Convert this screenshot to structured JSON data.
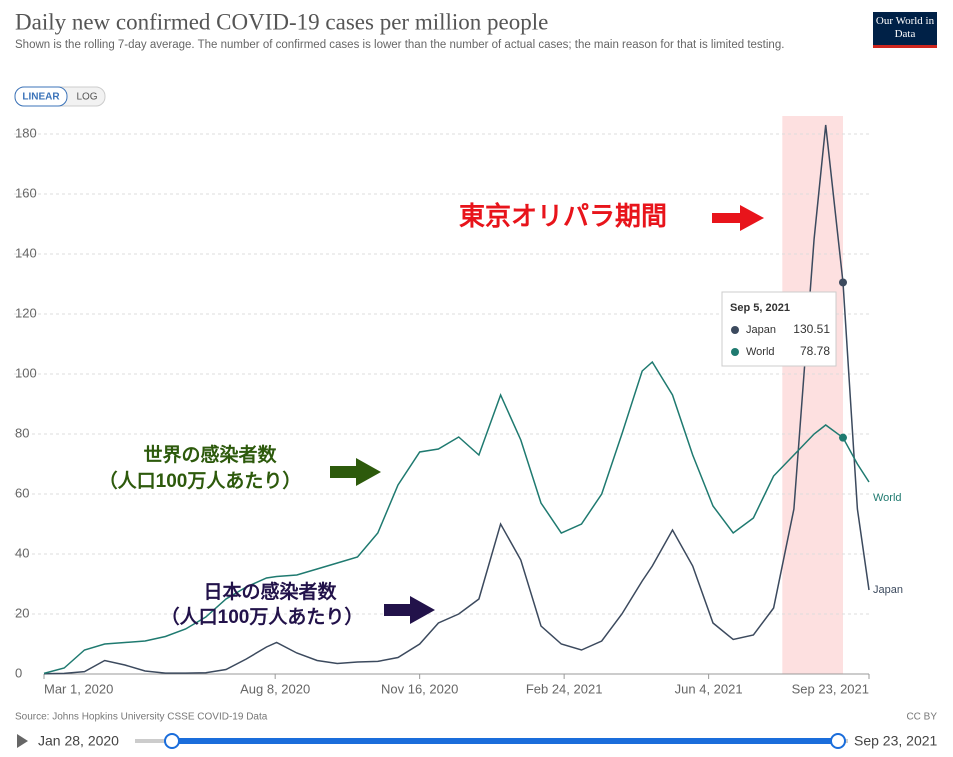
{
  "header": {
    "logo": "Our World in Data"
  },
  "controls": {
    "linear": "LINEAR",
    "log": "LOG"
  },
  "chart_data": {
    "type": "line",
    "title": "Daily new confirmed COVID-19 cases per million people",
    "subtitle": "Shown is the rolling 7-day average. The number of confirmed cases is lower than the number of actual cases; the main reason for that is limited testing.",
    "x": [
      "2020-03-01",
      "2020-03-15",
      "2020-03-29",
      "2020-04-12",
      "2020-04-26",
      "2020-05-10",
      "2020-05-24",
      "2020-06-07",
      "2020-06-21",
      "2020-07-05",
      "2020-07-19",
      "2020-08-02",
      "2020-08-09",
      "2020-08-23",
      "2020-09-06",
      "2020-09-20",
      "2020-10-04",
      "2020-10-18",
      "2020-11-01",
      "2020-11-16",
      "2020-11-29",
      "2020-12-13",
      "2020-12-27",
      "2021-01-11",
      "2021-01-25",
      "2021-02-08",
      "2021-02-22",
      "2021-03-08",
      "2021-03-22",
      "2021-04-05",
      "2021-04-19",
      "2021-04-26",
      "2021-05-10",
      "2021-05-24",
      "2021-06-07",
      "2021-06-21",
      "2021-07-05",
      "2021-07-19",
      "2021-08-02",
      "2021-08-16",
      "2021-08-24",
      "2021-09-05",
      "2021-09-15",
      "2021-09-23"
    ],
    "series": [
      {
        "name": "Japan",
        "color": "#3c4a5e",
        "values": [
          0.1,
          0.2,
          0.8,
          4.5,
          3,
          1,
          0.3,
          0.3,
          0.4,
          1.5,
          5,
          9,
          10.5,
          7,
          4.5,
          3.5,
          4,
          4.2,
          5.5,
          10,
          17,
          20,
          25,
          50,
          38,
          16,
          10,
          8,
          11,
          20,
          31,
          36,
          48,
          36,
          17,
          11.5,
          13,
          22,
          55,
          145,
          183,
          130.51,
          55,
          28
        ]
      },
      {
        "name": "World",
        "color": "#1f7a70",
        "values": [
          0.2,
          2,
          8,
          10,
          10.5,
          11,
          12.5,
          15,
          19,
          25,
          29,
          32,
          32.5,
          33,
          35,
          37,
          39,
          47,
          63,
          74,
          75,
          79,
          73,
          93,
          78,
          57,
          47,
          50,
          60,
          80,
          101,
          104,
          93,
          73,
          56,
          47,
          52,
          66,
          73,
          80,
          83,
          78.78,
          70,
          64
        ]
      }
    ],
    "xlim": [
      "2020-03-01",
      "2021-09-23"
    ],
    "xticks": [
      {
        "value": "2020-03-01",
        "label": "Mar 1, 2020"
      },
      {
        "value": "2020-08-08",
        "label": "Aug 8, 2020"
      },
      {
        "value": "2020-11-16",
        "label": "Nov 16, 2020"
      },
      {
        "value": "2021-02-24",
        "label": "Feb 24, 2021"
      },
      {
        "value": "2021-06-04",
        "label": "Jun 4, 2021"
      },
      {
        "value": "2021-09-23",
        "label": "Sep 23, 2021"
      }
    ],
    "ylim": [
      0,
      186
    ],
    "yticks": [
      0,
      20,
      40,
      60,
      80,
      100,
      120,
      140,
      160,
      180
    ],
    "grid": true,
    "highlight_range": [
      "2021-07-25",
      "2021-09-05"
    ],
    "tooltip": {
      "index": 41,
      "date": "Sep 5, 2021"
    },
    "annotations": {
      "olympics": "東京オリパラ期間",
      "world": [
        "世界の感染者数",
        "（人口100万人あたり）"
      ],
      "japan": [
        "日本の感染者数",
        "（人口100万人あたり）"
      ]
    },
    "source": "Source: Johns Hopkins University CSSE COVID-19 Data",
    "license": "CC BY",
    "slider": {
      "start": "Jan 28, 2020",
      "end": "Sep 23, 2021"
    }
  }
}
